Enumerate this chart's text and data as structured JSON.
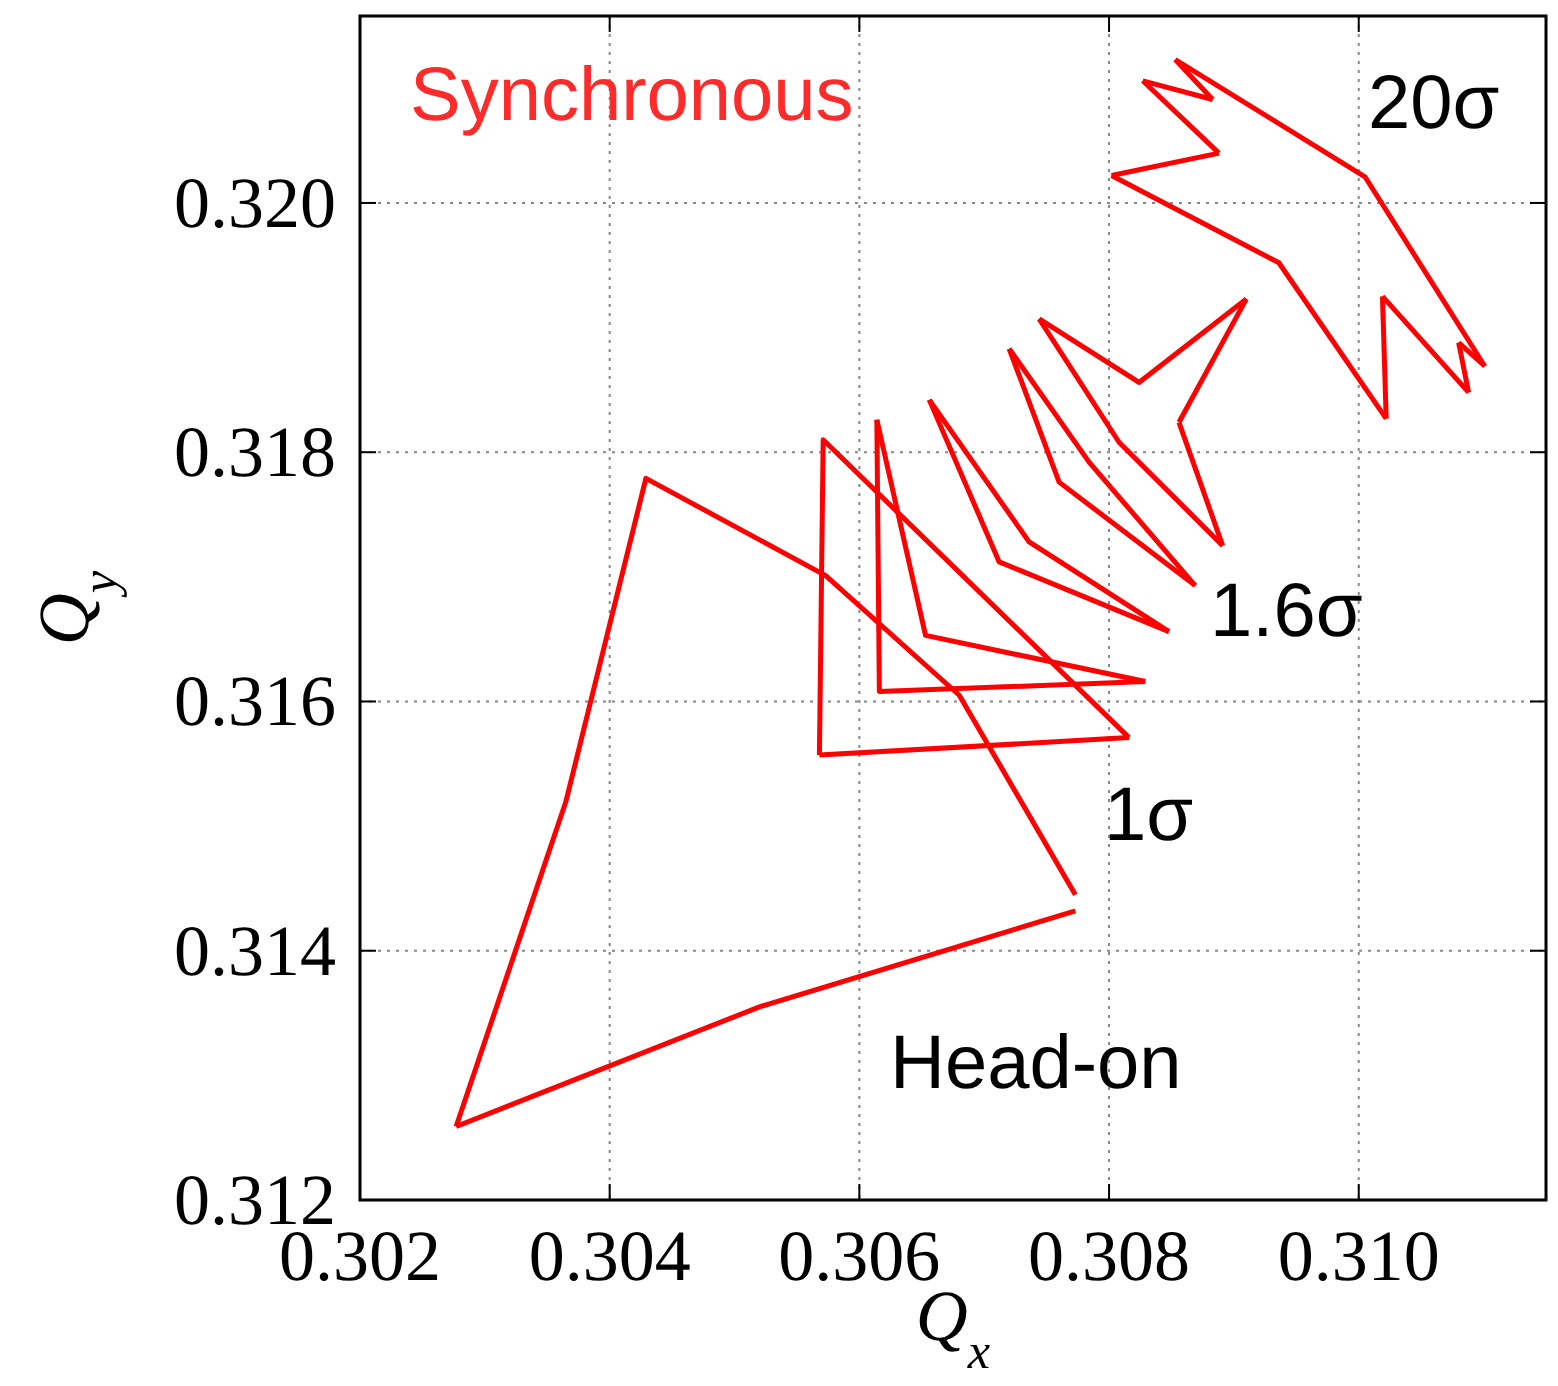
{
  "chart_data": {
    "type": "line",
    "title": "Synchronous",
    "xlabel": "Q$_{x}$",
    "ylabel": "Q$_{y}$",
    "xlim": [
      0.302,
      0.3115
    ],
    "ylim": [
      0.312,
      0.3215
    ],
    "xticks": [
      0.302,
      0.304,
      0.306,
      0.308,
      {
        "value": 0.31,
        "label": "0.310"
      }
    ],
    "yticks": [
      0.312,
      0.314,
      0.316,
      0.318,
      {
        "value": 0.32,
        "label": "0.320"
      }
    ],
    "grid": true,
    "marker": "none",
    "line_style": "solid",
    "series": [
      {
        "color": "#ff0000",
        "x": [
          0.30277,
          0.30365,
          0.30429,
          0.30573,
          0.3068,
          0.30773
        ],
        "values": [
          0.31259,
          0.3152,
          0.31779,
          0.31701,
          0.31605,
          0.31445
        ]
      },
      {
        "color": "#ff0000",
        "x": [
          0.30277,
          0.3052,
          0.30773
        ],
        "values": [
          0.31259,
          0.31355,
          0.31432
        ]
      },
      {
        "color": "#ff0000",
        "x": [
          0.30568,
          0.30571,
          0.30816
        ],
        "values": [
          0.31557,
          0.3181,
          0.31571
        ]
      },
      {
        "color": "#ff0000",
        "x": [
          0.30568,
          0.30816
        ],
        "values": [
          0.31557,
          0.31571
        ]
      },
      {
        "color": "#ff0000",
        "x": [
          0.30614,
          0.30653,
          0.30829
        ],
        "values": [
          0.31826,
          0.31653,
          0.31616
        ]
      },
      {
        "color": "#ff0000",
        "x": [
          0.30614,
          0.30616,
          0.30829
        ],
        "values": [
          0.31826,
          0.31608,
          0.31616
        ]
      },
      {
        "color": "#ff0000",
        "x": [
          0.30656,
          0.30736,
          0.30848
        ],
        "values": [
          0.31842,
          0.31728,
          0.31656
        ]
      },
      {
        "color": "#ff0000",
        "x": [
          0.30656,
          0.30712,
          0.30848
        ],
        "values": [
          0.31842,
          0.31712,
          0.31656
        ]
      },
      {
        "color": "#ff0000",
        "x": [
          0.3072,
          0.30784,
          0.30869
        ],
        "values": [
          0.31883,
          0.31792,
          0.31693
        ]
      },
      {
        "color": "#ff0000",
        "x": [
          0.3072,
          0.3076,
          0.30869
        ],
        "values": [
          0.31883,
          0.31776,
          0.31693
        ]
      },
      {
        "color": "#ff0000",
        "x": [
          0.30744,
          0.30824,
          0.3091
        ],
        "values": [
          0.31907,
          0.31856,
          0.31923
        ]
      },
      {
        "color": "#ff0000",
        "x": [
          0.30856,
          0.3091
        ],
        "values": [
          0.31824,
          0.31923
        ]
      },
      {
        "color": "#ff0000",
        "x": [
          0.30856,
          0.30891
        ],
        "values": [
          0.31824,
          0.31725
        ]
      },
      {
        "color": "#ff0000",
        "x": [
          0.30744,
          0.30808,
          0.30891
        ],
        "values": [
          0.31907,
          0.31808,
          0.31725
        ]
      },
      {
        "color": "#ff0000",
        "x": [
          0.30802,
          0.30888
        ],
        "values": [
          0.32022,
          0.3204
        ]
      },
      {
        "color": "#ff0000",
        "x": [
          0.30827,
          0.30888
        ],
        "values": [
          0.32098,
          0.3204
        ]
      },
      {
        "color": "#ff0000",
        "x": [
          0.30827,
          0.30883
        ],
        "values": [
          0.32098,
          0.32083
        ]
      },
      {
        "color": "#ff0000",
        "x": [
          0.30853,
          0.30883
        ],
        "values": [
          0.32115,
          0.32083
        ]
      },
      {
        "color": "#ff0000",
        "x": [
          0.30853,
          0.31005,
          0.31101
        ],
        "values": [
          0.32115,
          0.32021,
          0.31869
        ]
      },
      {
        "color": "#ff0000",
        "x": [
          0.3108,
          0.31101
        ],
        "values": [
          0.31888,
          0.31869
        ]
      },
      {
        "color": "#ff0000",
        "x": [
          0.3108,
          0.31088
        ],
        "values": [
          0.31888,
          0.31848
        ]
      },
      {
        "color": "#ff0000",
        "x": [
          0.31019,
          0.31088
        ],
        "values": [
          0.31925,
          0.31848
        ]
      },
      {
        "color": "#ff0000",
        "x": [
          0.31019,
          0.31022
        ],
        "values": [
          0.31925,
          0.31827
        ]
      },
      {
        "color": "#ff0000",
        "x": [
          0.30802,
          0.30936,
          0.31022
        ],
        "values": [
          0.32022,
          0.31952,
          0.31827
        ]
      }
    ],
    "annotations": [
      "20σ",
      "1.6σ",
      "1σ",
      "Head-on"
    ]
  }
}
